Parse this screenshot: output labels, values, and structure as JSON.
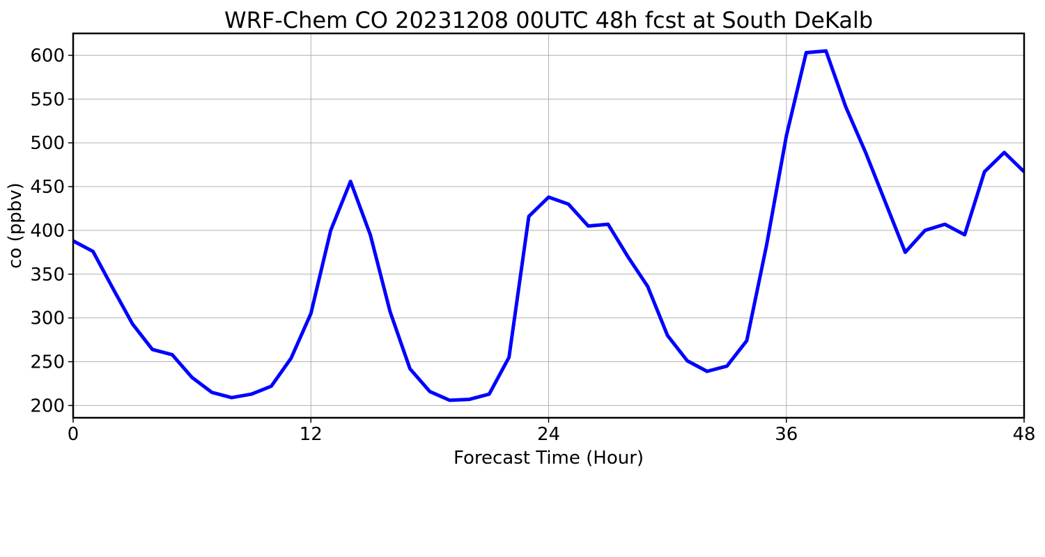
{
  "chart_data": {
    "type": "line",
    "title": "WRF-Chem CO  20231208 00UTC 48h fcst at South DeKalb",
    "xlabel": "Forecast Time (Hour)",
    "ylabel": "co  (ppbv)",
    "xlim": [
      0,
      48
    ],
    "ylim": [
      186,
      625
    ],
    "xticks": [
      0,
      12,
      24,
      36,
      48
    ],
    "yticks": [
      200,
      250,
      300,
      350,
      400,
      450,
      500,
      550,
      600
    ],
    "grid": true,
    "legend": "none",
    "series": [
      {
        "color": "#0000ff",
        "x": [
          0,
          1,
          2,
          3,
          4,
          5,
          6,
          7,
          8,
          9,
          10,
          11,
          12,
          13,
          14,
          15,
          16,
          17,
          18,
          19,
          20,
          21,
          22,
          23,
          24,
          25,
          26,
          27,
          28,
          29,
          30,
          31,
          32,
          33,
          34,
          35,
          36,
          37,
          38,
          39,
          40,
          41,
          42,
          43,
          44,
          45,
          46,
          47,
          48
        ],
        "y": [
          388,
          376,
          334,
          293,
          264,
          258,
          232,
          215,
          209,
          213,
          222,
          254,
          305,
          400,
          456,
          395,
          307,
          242,
          216,
          206,
          207,
          213,
          255,
          416,
          438,
          430,
          405,
          407,
          370,
          336,
          280,
          251,
          239,
          245,
          274,
          383,
          508,
          603,
          605,
          541,
          489,
          432,
          375,
          400,
          407,
          395,
          467,
          489,
          467
        ]
      }
    ]
  }
}
